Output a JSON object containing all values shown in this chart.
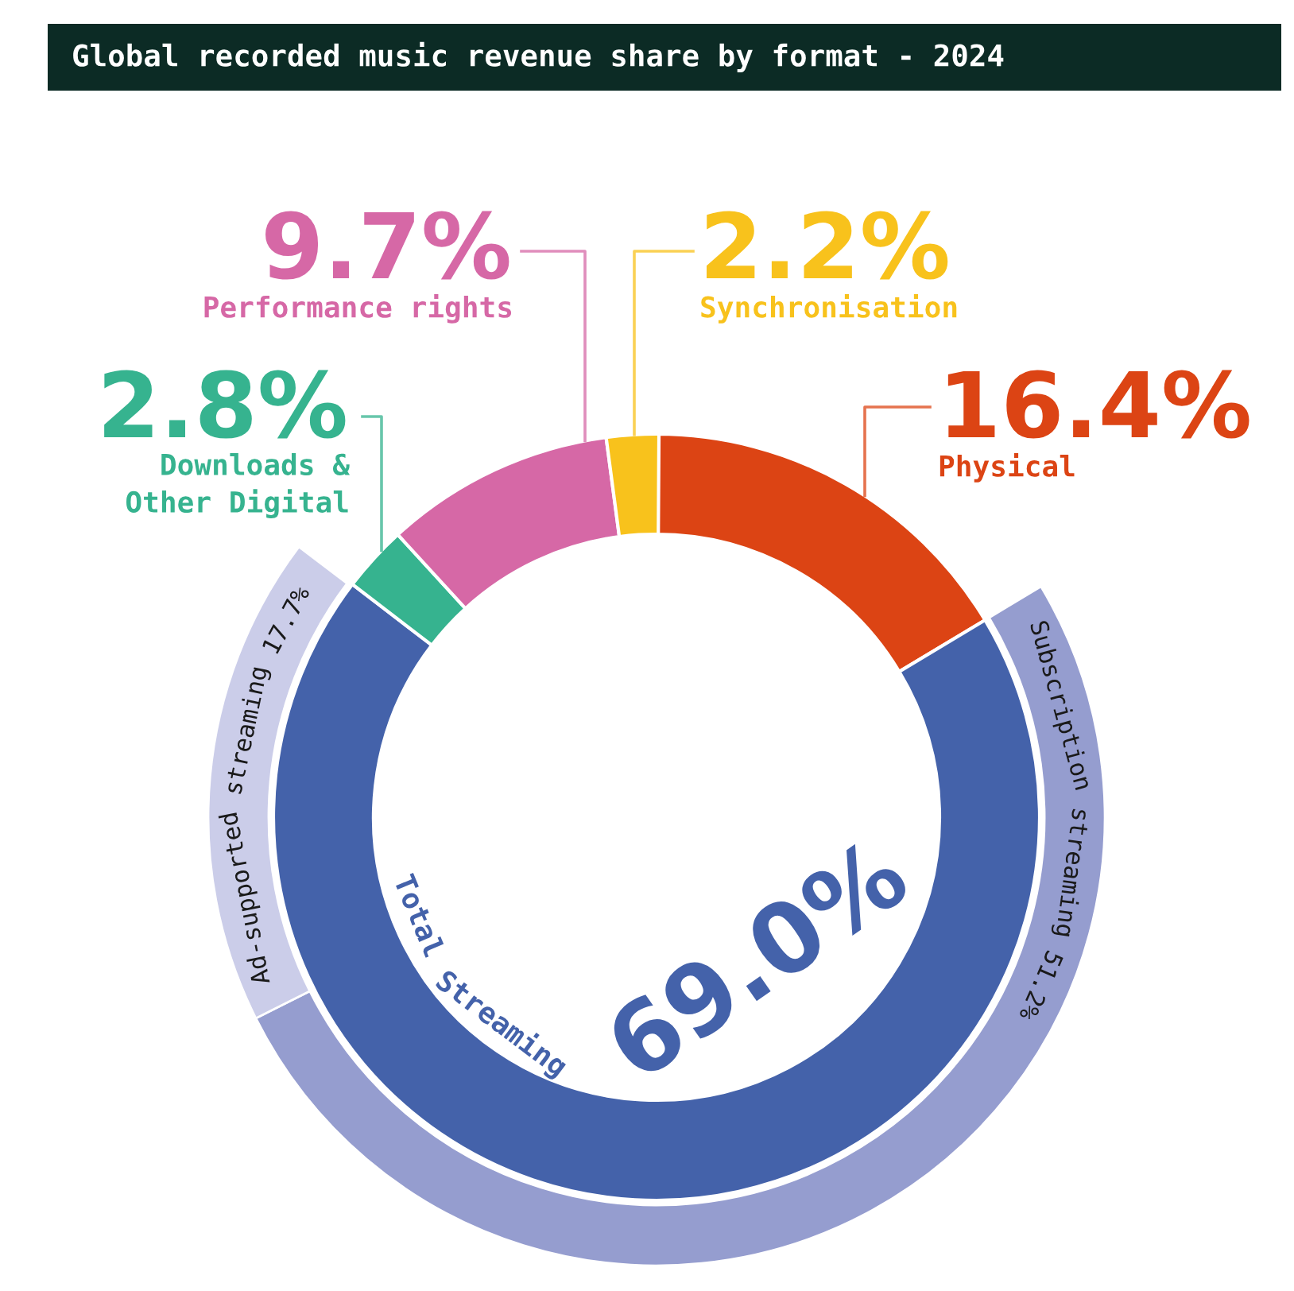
{
  "chart_data": {
    "type": "donut",
    "title": "Global recorded music revenue share by format - 2024",
    "categories": [
      "Physical",
      "Total Streaming",
      "Downloads &\nOther Digital",
      "Performance rights",
      "Synchronisation",
      null,
      null
    ],
    "series": [
      {
        "values": [
          16.4,
          69.0,
          2.8,
          9.7,
          2.2,
          null,
          null
        ],
        "colors": [
          "#dc4414",
          "#4462aa",
          "#36b38f",
          "#d668a6",
          "#f8c21c",
          null,
          null
        ],
        "value_labels": [
          "16.4%",
          "69.0%",
          "2.8%",
          "9.7%",
          "2.2%",
          null,
          null
        ]
      },
      {
        "values": [
          null,
          null,
          null,
          null,
          null,
          51.2,
          17.7
        ],
        "colors": [
          null,
          null,
          null,
          null,
          null,
          "#959dcf",
          "#cbcde9"
        ],
        "value_labels": [
          null,
          null,
          null,
          null,
          null,
          "51.2%",
          "17.7%"
        ]
      }
    ],
    "annotations": [
      "Subscription streaming",
      "Ad-supported streaming"
    ]
  }
}
